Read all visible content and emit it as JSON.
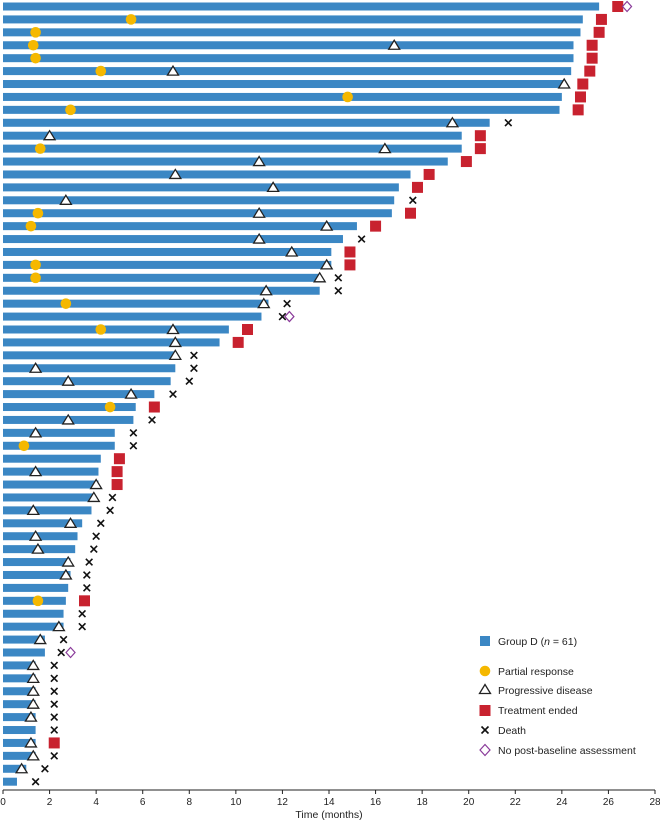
{
  "chart_data": {
    "type": "swimmer",
    "xlabel": "Time (months)",
    "xlim": [
      0,
      28
    ],
    "xticks": [
      0,
      2,
      4,
      6,
      8,
      10,
      12,
      14,
      16,
      18,
      20,
      22,
      24,
      26,
      28
    ],
    "bar_color": "#3b87c4",
    "legend": {
      "group_prefix": "Group D (",
      "group_n_symbol": "n",
      "group_suffix": " = 61)",
      "items": [
        {
          "key": "pr",
          "label": "Partial response",
          "color": "#f5b800"
        },
        {
          "key": "pd",
          "label": "Progressive disease",
          "color": "#222222"
        },
        {
          "key": "te",
          "label": "Treatment ended",
          "color": "#c8222f"
        },
        {
          "key": "death",
          "label": "Death",
          "color": "#111111"
        },
        {
          "key": "npba",
          "label": "No post-baseline assessment",
          "color": "#8a3b9a"
        }
      ]
    },
    "patients": [
      {
        "duration": 25.6,
        "pr": null,
        "pd": null,
        "te": 26.4,
        "death": null,
        "npba": 26.8
      },
      {
        "duration": 24.9,
        "pr": 5.5,
        "pd": null,
        "te": 25.7,
        "death": null,
        "npba": null
      },
      {
        "duration": 24.8,
        "pr": 1.4,
        "pd": null,
        "te": 25.6,
        "death": null,
        "npba": null
      },
      {
        "duration": 24.5,
        "pr": 1.3,
        "pd": 16.8,
        "te": 25.3,
        "death": null,
        "npba": null
      },
      {
        "duration": 24.5,
        "pr": 1.4,
        "pd": null,
        "te": 25.3,
        "death": null,
        "npba": null
      },
      {
        "duration": 24.4,
        "pr": 4.2,
        "pd": 7.3,
        "te": 25.2,
        "death": null,
        "npba": null
      },
      {
        "duration": 24.1,
        "pr": null,
        "pd": 24.1,
        "te": 24.9,
        "death": null,
        "npba": null
      },
      {
        "duration": 24.0,
        "pr": 14.8,
        "pd": null,
        "te": 24.8,
        "death": null,
        "npba": null
      },
      {
        "duration": 23.9,
        "pr": 2.9,
        "pd": null,
        "te": 24.7,
        "death": null,
        "npba": null
      },
      {
        "duration": 20.9,
        "pr": null,
        "pd": 19.3,
        "te": null,
        "death": 21.7,
        "npba": null
      },
      {
        "duration": 19.7,
        "pr": null,
        "pd": 2.0,
        "te": 20.5,
        "death": null,
        "npba": null
      },
      {
        "duration": 19.7,
        "pr": 1.6,
        "pd": 16.4,
        "te": 20.5,
        "death": null,
        "npba": null
      },
      {
        "duration": 19.1,
        "pr": null,
        "pd": 11.0,
        "te": 19.9,
        "death": null,
        "npba": null
      },
      {
        "duration": 17.5,
        "pr": null,
        "pd": 7.4,
        "te": 18.3,
        "death": null,
        "npba": null
      },
      {
        "duration": 17.0,
        "pr": null,
        "pd": 11.6,
        "te": 17.8,
        "death": null,
        "npba": null
      },
      {
        "duration": 16.8,
        "pr": null,
        "pd": 2.7,
        "te": null,
        "death": 17.6,
        "npba": null
      },
      {
        "duration": 16.7,
        "pr": 1.5,
        "pd": 11.0,
        "te": 17.5,
        "death": null,
        "npba": null
      },
      {
        "duration": 15.2,
        "pr": 1.2,
        "pd": 13.9,
        "te": 16.0,
        "death": null,
        "npba": null
      },
      {
        "duration": 14.6,
        "pr": null,
        "pd": 11.0,
        "te": null,
        "death": 15.4,
        "npba": null
      },
      {
        "duration": 14.1,
        "pr": null,
        "pd": 12.4,
        "te": 14.9,
        "death": null,
        "npba": null
      },
      {
        "duration": 14.1,
        "pr": 1.4,
        "pd": 13.9,
        "te": 14.9,
        "death": null,
        "npba": null
      },
      {
        "duration": 13.6,
        "pr": 1.4,
        "pd": 13.6,
        "te": null,
        "death": 14.4,
        "npba": null
      },
      {
        "duration": 13.6,
        "pr": null,
        "pd": 11.3,
        "te": null,
        "death": 14.4,
        "npba": null
      },
      {
        "duration": 11.4,
        "pr": 2.7,
        "pd": 11.2,
        "te": null,
        "death": 12.2,
        "npba": null
      },
      {
        "duration": 11.1,
        "pr": null,
        "pd": null,
        "te": null,
        "death": 12.0,
        "npba": 12.3
      },
      {
        "duration": 9.7,
        "pr": 4.2,
        "pd": 7.3,
        "te": 10.5,
        "death": null,
        "npba": null
      },
      {
        "duration": 9.3,
        "pr": null,
        "pd": 7.4,
        "te": 10.1,
        "death": null,
        "npba": null
      },
      {
        "duration": 7.4,
        "pr": null,
        "pd": 7.4,
        "te": null,
        "death": 8.2,
        "npba": null
      },
      {
        "duration": 7.4,
        "pr": null,
        "pd": 1.4,
        "te": null,
        "death": 8.2,
        "npba": null
      },
      {
        "duration": 7.2,
        "pr": null,
        "pd": 2.8,
        "te": null,
        "death": 8.0,
        "npba": null
      },
      {
        "duration": 6.5,
        "pr": null,
        "pd": 5.5,
        "te": null,
        "death": 7.3,
        "npba": null
      },
      {
        "duration": 5.7,
        "pr": 4.6,
        "pd": null,
        "te": 6.5,
        "death": null,
        "npba": null
      },
      {
        "duration": 5.6,
        "pr": null,
        "pd": 2.8,
        "te": null,
        "death": 6.4,
        "npba": null
      },
      {
        "duration": 4.8,
        "pr": null,
        "pd": 1.4,
        "te": null,
        "death": 5.6,
        "npba": null
      },
      {
        "duration": 4.8,
        "pr": 0.9,
        "pd": null,
        "te": null,
        "death": 5.6,
        "npba": null
      },
      {
        "duration": 4.2,
        "pr": null,
        "pd": null,
        "te": 5.0,
        "death": null,
        "npba": null
      },
      {
        "duration": 4.1,
        "pr": null,
        "pd": 1.4,
        "te": 4.9,
        "death": null,
        "npba": null
      },
      {
        "duration": 4.1,
        "pr": null,
        "pd": 4.0,
        "te": 4.9,
        "death": null,
        "npba": null
      },
      {
        "duration": 3.9,
        "pr": null,
        "pd": 3.9,
        "te": null,
        "death": 4.7,
        "npba": null
      },
      {
        "duration": 3.8,
        "pr": null,
        "pd": 1.3,
        "te": null,
        "death": 4.6,
        "npba": null
      },
      {
        "duration": 3.4,
        "pr": null,
        "pd": 2.9,
        "te": null,
        "death": 4.2,
        "npba": null
      },
      {
        "duration": 3.2,
        "pr": null,
        "pd": 1.4,
        "te": null,
        "death": 4.0,
        "npba": null
      },
      {
        "duration": 3.1,
        "pr": null,
        "pd": 1.5,
        "te": null,
        "death": 3.9,
        "npba": null
      },
      {
        "duration": 2.9,
        "pr": null,
        "pd": 2.8,
        "te": null,
        "death": 3.7,
        "npba": null
      },
      {
        "duration": 2.9,
        "pr": null,
        "pd": 2.7,
        "te": null,
        "death": 3.6,
        "npba": null
      },
      {
        "duration": 2.8,
        "pr": null,
        "pd": null,
        "te": null,
        "death": 3.6,
        "npba": null
      },
      {
        "duration": 2.7,
        "pr": 1.5,
        "pd": null,
        "te": 3.5,
        "death": null,
        "npba": null
      },
      {
        "duration": 2.6,
        "pr": null,
        "pd": null,
        "te": null,
        "death": 3.4,
        "npba": null
      },
      {
        "duration": 2.6,
        "pr": null,
        "pd": 2.4,
        "te": null,
        "death": 3.4,
        "npba": null
      },
      {
        "duration": 1.8,
        "pr": null,
        "pd": 1.6,
        "te": null,
        "death": 2.6,
        "npba": null
      },
      {
        "duration": 1.8,
        "pr": null,
        "pd": null,
        "te": null,
        "death": 2.5,
        "npba": 2.9
      },
      {
        "duration": 1.4,
        "pr": null,
        "pd": 1.3,
        "te": null,
        "death": 2.2,
        "npba": null
      },
      {
        "duration": 1.4,
        "pr": null,
        "pd": 1.3,
        "te": null,
        "death": 2.2,
        "npba": null
      },
      {
        "duration": 1.4,
        "pr": null,
        "pd": 1.3,
        "te": null,
        "death": 2.2,
        "npba": null
      },
      {
        "duration": 1.4,
        "pr": null,
        "pd": 1.3,
        "te": null,
        "death": 2.2,
        "npba": null
      },
      {
        "duration": 1.4,
        "pr": null,
        "pd": 1.2,
        "te": null,
        "death": 2.2,
        "npba": null
      },
      {
        "duration": 1.4,
        "pr": null,
        "pd": null,
        "te": null,
        "death": 2.2,
        "npba": null
      },
      {
        "duration": 1.4,
        "pr": null,
        "pd": 1.2,
        "te": 2.2,
        "death": null,
        "npba": null
      },
      {
        "duration": 1.4,
        "pr": null,
        "pd": 1.3,
        "te": null,
        "death": 2.2,
        "npba": null
      },
      {
        "duration": 1.0,
        "pr": null,
        "pd": 0.8,
        "te": null,
        "death": 1.8,
        "npba": null
      },
      {
        "duration": 0.6,
        "pr": null,
        "pd": null,
        "te": null,
        "death": 1.4,
        "npba": null
      }
    ]
  }
}
